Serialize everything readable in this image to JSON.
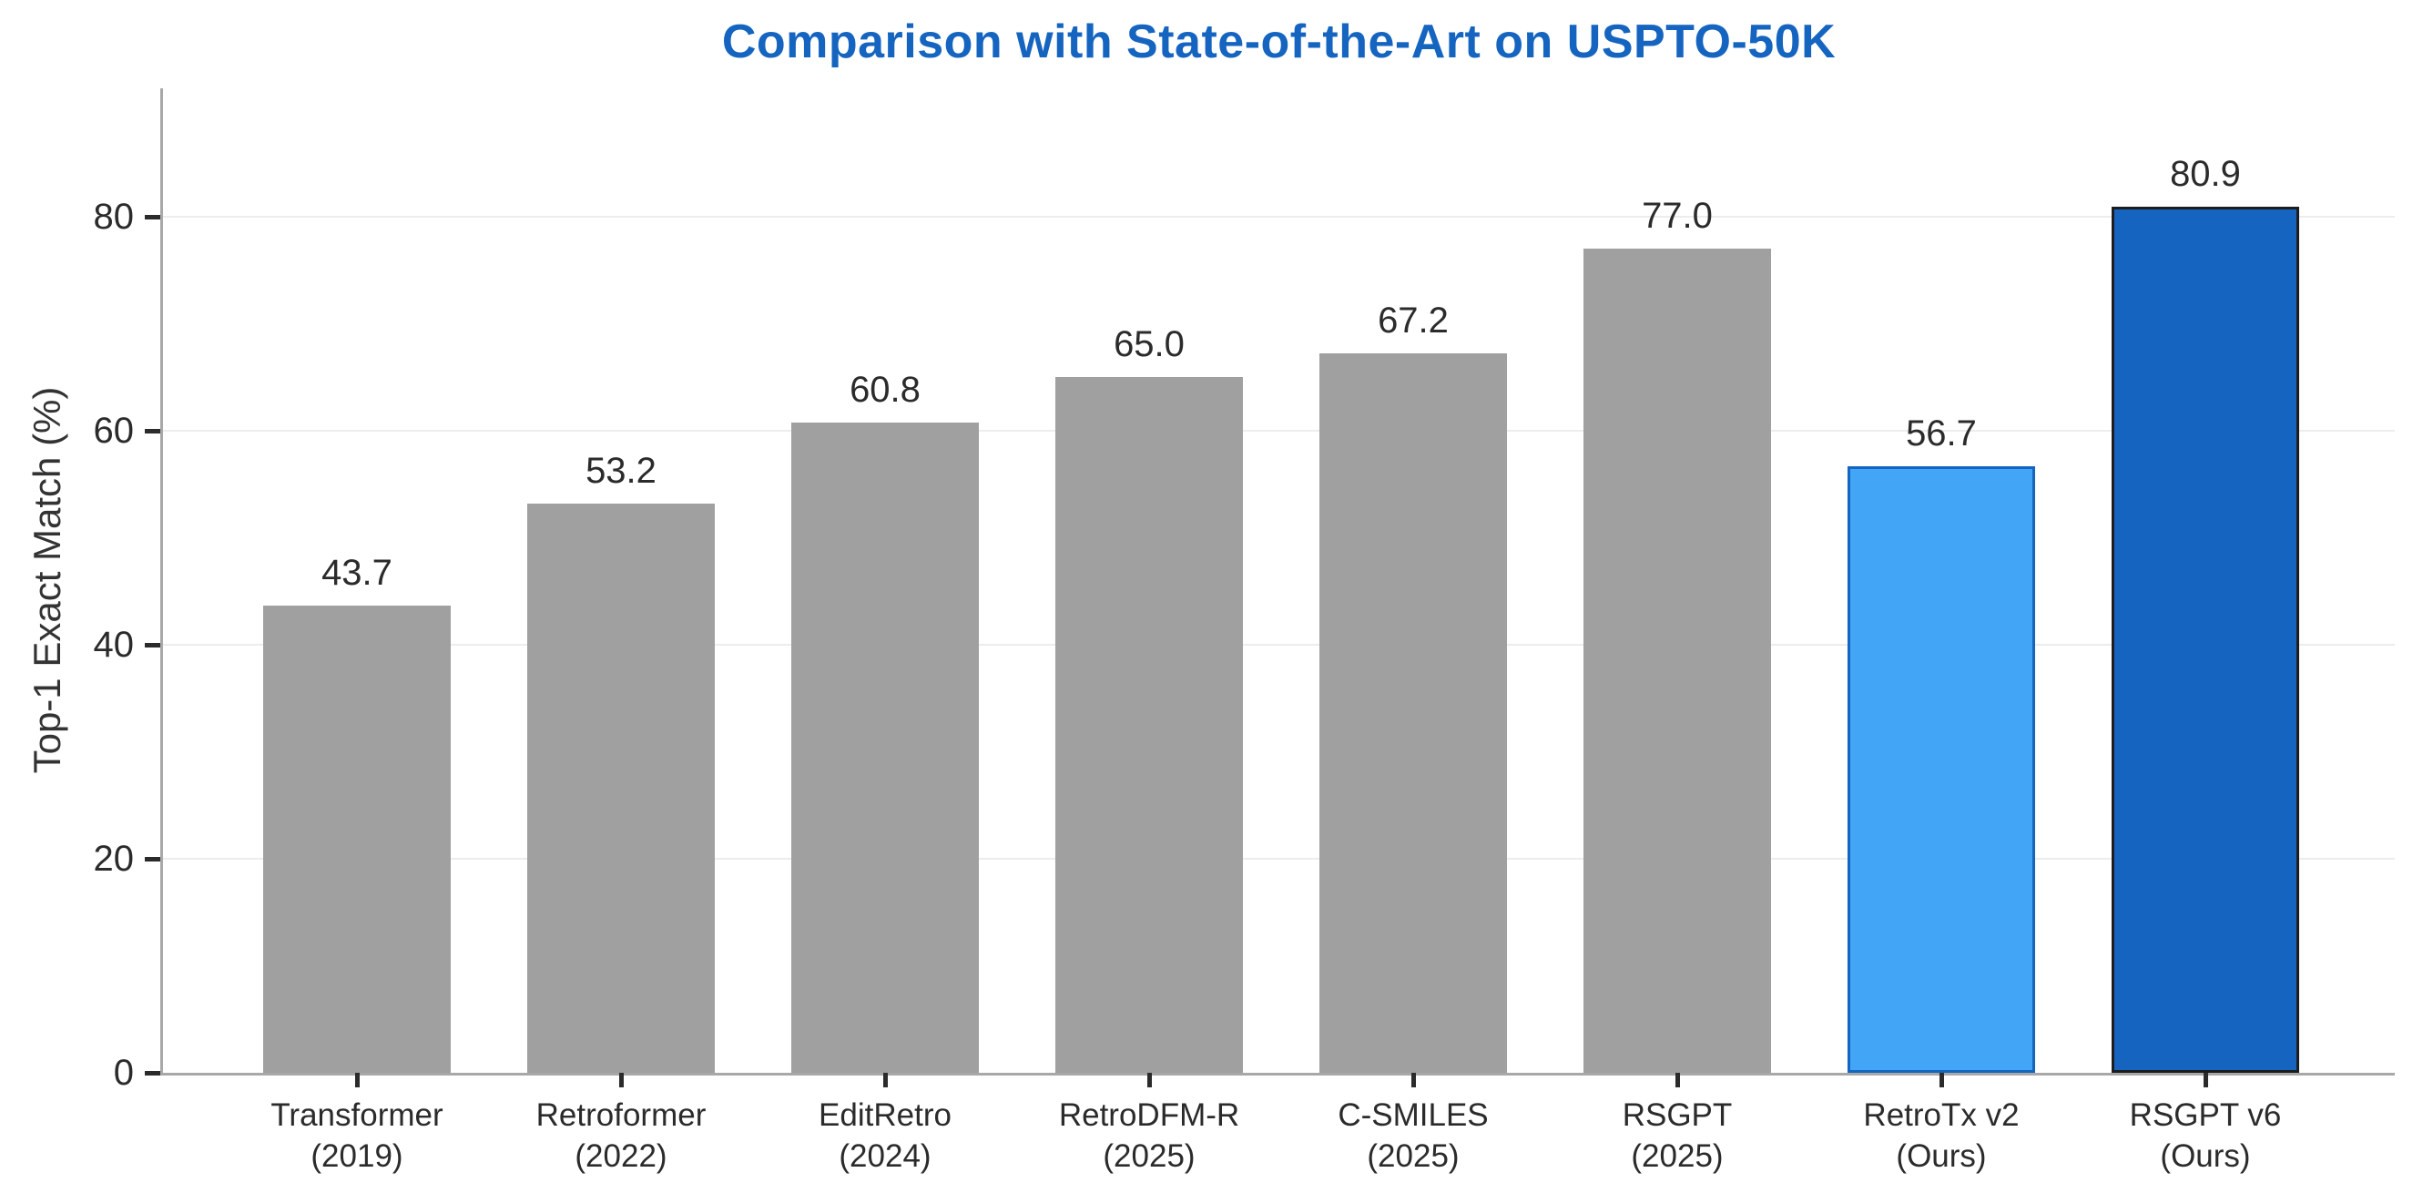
{
  "chart_data": {
    "type": "bar",
    "title": "Comparison with State-of-the-Art on USPTO-50K",
    "xlabel": "",
    "ylabel": "Top-1 Exact Match (%)",
    "ylim": [
      0,
      92
    ],
    "yticks": [
      0,
      20,
      40,
      60,
      80
    ],
    "grid": "horizontal",
    "legend": "none",
    "categories": [
      "Transformer (2019)",
      "Retroformer (2022)",
      "EditRetro (2024)",
      "RetroDFM-R (2025)",
      "C-SMILES (2025)",
      "RSGPT (2025)",
      "RetroTx v2 (Ours)",
      "RSGPT v6 (Ours)"
    ],
    "values": [
      43.7,
      53.2,
      60.8,
      65.0,
      67.2,
      77.0,
      56.7,
      80.9
    ],
    "bars": [
      {
        "label": "Transformer",
        "sublabel": "(2019)",
        "value": 43.7,
        "value_text": "43.7",
        "fill": "#a0a0a0",
        "border": ""
      },
      {
        "label": "Retroformer",
        "sublabel": "(2022)",
        "value": 53.2,
        "value_text": "53.2",
        "fill": "#a0a0a0",
        "border": ""
      },
      {
        "label": "EditRetro",
        "sublabel": "(2024)",
        "value": 60.8,
        "value_text": "60.8",
        "fill": "#a0a0a0",
        "border": ""
      },
      {
        "label": "RetroDFM-R",
        "sublabel": "(2025)",
        "value": 65.0,
        "value_text": "65.0",
        "fill": "#a0a0a0",
        "border": ""
      },
      {
        "label": "C-SMILES",
        "sublabel": "(2025)",
        "value": 67.2,
        "value_text": "67.2",
        "fill": "#a0a0a0",
        "border": ""
      },
      {
        "label": "RSGPT",
        "sublabel": "(2025)",
        "value": 77.0,
        "value_text": "77.0",
        "fill": "#a0a0a0",
        "border": ""
      },
      {
        "label": "RetroTx v2",
        "sublabel": "(Ours)",
        "value": 56.7,
        "value_text": "56.7",
        "fill": "#42a5f5",
        "border": "#1565c0"
      },
      {
        "label": "RSGPT v6",
        "sublabel": "(Ours)",
        "value": 80.9,
        "value_text": "80.9",
        "fill": "#1565c0",
        "border": "#1d1d1d"
      }
    ],
    "colors": {
      "title": "#1565c0",
      "baseline_bar": "#a0a0a0",
      "highlight_light": "#42a5f5",
      "highlight_light_border": "#1565c0",
      "highlight_dark": "#1565c0",
      "highlight_dark_border": "#1d1d1d",
      "gridline": "#ededed",
      "axis": "#a8a8a8",
      "text": "#2b2b2b"
    }
  }
}
